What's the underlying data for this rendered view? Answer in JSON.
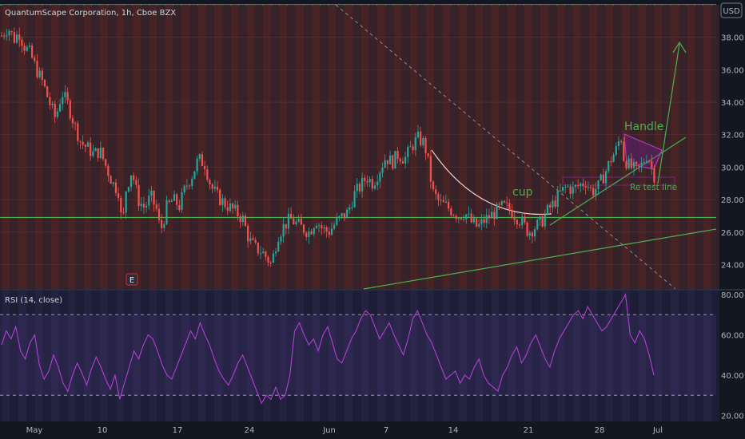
{
  "header": {
    "symbol": "QuantumScape Corporation, 1h, Cboe BZX",
    "currency": "USD"
  },
  "chart_data": [
    {
      "type": "candlestick",
      "title": "QuantumScape Corporation, 1h, Cboe BZX",
      "ylim": [
        22.5,
        40.0
      ],
      "y_ticks": [
        "24.00",
        "26.00",
        "28.00",
        "30.00",
        "32.00",
        "34.00",
        "36.00",
        "38.00"
      ],
      "x_ticks": [
        "May",
        "10",
        "17",
        "24",
        "Jun",
        "7",
        "14",
        "21",
        "Jul"
      ],
      "x_ticks_bottom": [
        "May",
        "10",
        "17",
        "24",
        "Jun",
        "7",
        "14",
        "21",
        "28",
        "Jul"
      ],
      "close_path": [
        [
          0,
          38.1
        ],
        [
          4,
          38.6
        ],
        [
          8,
          37.9
        ],
        [
          11,
          38.3
        ],
        [
          14,
          37.5
        ],
        [
          18,
          37.0
        ],
        [
          22,
          36.0
        ],
        [
          26,
          35.2
        ],
        [
          30,
          34.0
        ],
        [
          34,
          33.0
        ],
        [
          38,
          34.6
        ],
        [
          42,
          33.8
        ],
        [
          46,
          32.6
        ],
        [
          50,
          31.5
        ],
        [
          54,
          31.2
        ],
        [
          58,
          30.8
        ],
        [
          62,
          31.0
        ],
        [
          66,
          30.0
        ],
        [
          70,
          29.0
        ],
        [
          74,
          28.5
        ],
        [
          76,
          26.0
        ],
        [
          78,
          28.5
        ],
        [
          82,
          29.8
        ],
        [
          86,
          28.0
        ],
        [
          90,
          27.5
        ],
        [
          94,
          28.2
        ],
        [
          98,
          27.3
        ],
        [
          100,
          26.0
        ],
        [
          104,
          27.5
        ],
        [
          108,
          28.0
        ],
        [
          112,
          27.6
        ],
        [
          116,
          28.8
        ],
        [
          120,
          29.5
        ],
        [
          124,
          30.5
        ],
        [
          128,
          30.2
        ],
        [
          132,
          28.8
        ],
        [
          136,
          28.2
        ],
        [
          140,
          27.8
        ],
        [
          144,
          27.5
        ],
        [
          148,
          27.2
        ],
        [
          152,
          26.8
        ],
        [
          156,
          25.5
        ],
        [
          160,
          25.0
        ],
        [
          164,
          24.8
        ],
        [
          168,
          24.3
        ],
        [
          170,
          24.0
        ],
        [
          174,
          25.8
        ],
        [
          178,
          26.4
        ],
        [
          182,
          26.8
        ],
        [
          186,
          26.5
        ],
        [
          190,
          26.2
        ],
        [
          194,
          26.0
        ],
        [
          198,
          26.8
        ],
        [
          202,
          26.2
        ],
        [
          206,
          26.0
        ],
        [
          210,
          26.5
        ],
        [
          214,
          26.9
        ],
        [
          218,
          27.2
        ],
        [
          222,
          28.3
        ],
        [
          226,
          28.8
        ],
        [
          230,
          29.4
        ],
        [
          234,
          29.0
        ],
        [
          238,
          29.8
        ],
        [
          242,
          30.6
        ],
        [
          246,
          30.3
        ],
        [
          250,
          30.8
        ],
        [
          254,
          30.5
        ],
        [
          258,
          31.2
        ],
        [
          262,
          31.8
        ],
        [
          266,
          31.5
        ],
        [
          268,
          30.8
        ],
        [
          270,
          29.5
        ],
        [
          272,
          28.4
        ],
        [
          276,
          27.8
        ],
        [
          280,
          27.6
        ],
        [
          284,
          27.3
        ],
        [
          288,
          27.0
        ],
        [
          292,
          27.2
        ],
        [
          296,
          26.6
        ],
        [
          300,
          26.3
        ],
        [
          304,
          26.7
        ],
        [
          308,
          27.0
        ],
        [
          312,
          27.3
        ],
        [
          316,
          27.6
        ],
        [
          320,
          27.4
        ],
        [
          324,
          27.0
        ],
        [
          328,
          26.6
        ],
        [
          332,
          26.0
        ],
        [
          336,
          26.3
        ],
        [
          340,
          26.6
        ],
        [
          344,
          27.3
        ],
        [
          348,
          27.8
        ],
        [
          352,
          28.4
        ],
        [
          356,
          28.8
        ],
        [
          360,
          28.6
        ],
        [
          364,
          28.9
        ],
        [
          368,
          29.1
        ],
        [
          372,
          28.5
        ],
        [
          376,
          28.8
        ],
        [
          380,
          29.6
        ],
        [
          384,
          30.5
        ],
        [
          388,
          31.2
        ],
        [
          390,
          32.1
        ],
        [
          392,
          30.6
        ],
        [
          396,
          30.0
        ],
        [
          400,
          29.8
        ],
        [
          404,
          30.2
        ],
        [
          406,
          30.8
        ],
        [
          408,
          30.5
        ],
        [
          410,
          29.8
        ],
        [
          412,
          29.3
        ]
      ],
      "horizontal_levels": [
        {
          "name": "support",
          "value": 26.9
        }
      ],
      "annotations": [
        {
          "text": "Handle",
          "color": "#4caf50"
        },
        {
          "text": "cup",
          "color": "#4caf50"
        },
        {
          "text": "Re test line",
          "color": "#4caf50"
        }
      ]
    },
    {
      "type": "line",
      "title": "RSI (14, close)",
      "ylim": [
        17,
        82
      ],
      "y_ticks": [
        "20.00",
        "40.00",
        "60.00",
        "80.00"
      ],
      "bands": [
        30,
        70
      ],
      "values": [
        55,
        62,
        58,
        64,
        52,
        48,
        56,
        60,
        45,
        38,
        42,
        50,
        44,
        36,
        32,
        40,
        46,
        41,
        35,
        43,
        49,
        44,
        38,
        33,
        40,
        28,
        36,
        44,
        52,
        48,
        55,
        60,
        58,
        52,
        45,
        40,
        38,
        44,
        50,
        56,
        62,
        58,
        66,
        60,
        55,
        48,
        42,
        38,
        35,
        40,
        46,
        50,
        44,
        38,
        32,
        26,
        30,
        28,
        34,
        28,
        30,
        40,
        62,
        66,
        60,
        55,
        58,
        52,
        60,
        64,
        56,
        48,
        46,
        52,
        58,
        62,
        68,
        72,
        70,
        64,
        58,
        62,
        66,
        60,
        55,
        50,
        58,
        68,
        72,
        66,
        60,
        56,
        50,
        44,
        38,
        40,
        42,
        36,
        40,
        38,
        44,
        48,
        40,
        36,
        34,
        32,
        40,
        44,
        50,
        54,
        46,
        50,
        56,
        60,
        54,
        48,
        44,
        52,
        58,
        62,
        66,
        70,
        72,
        68,
        74,
        70,
        66,
        62,
        64,
        68,
        72,
        76,
        80,
        60,
        56,
        62,
        58,
        50,
        40
      ]
    }
  ]
}
